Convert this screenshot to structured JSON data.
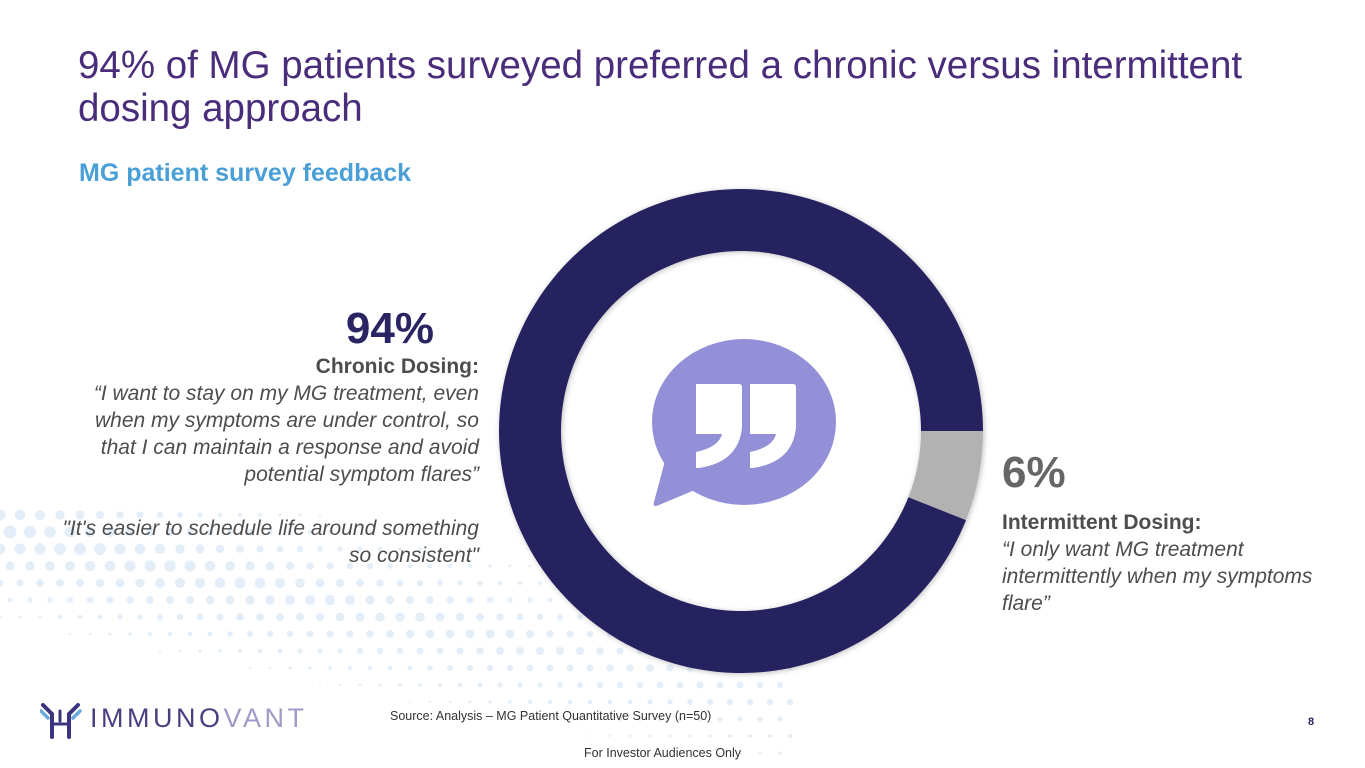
{
  "slide": {
    "title": "94% of MG patients surveyed preferred a chronic versus intermittent dosing approach",
    "subtitle": "MG patient survey feedback",
    "source": "Source: Analysis – MG Patient Quantitative Survey (n=50)",
    "footer": "For Investor Audiences Only",
    "page_number": "8",
    "logo": {
      "text_main": "IMMUNO",
      "text_accent": "VANT",
      "icon": "antibody-icon"
    },
    "center_icon": "quote-bubble-icon"
  },
  "chronic": {
    "percent_label": "94%",
    "heading": "Chronic Dosing:",
    "quote_1": "“I want to stay on my MG treatment, even when my symptoms are under control, so that I can maintain a response and avoid potential symptom flares”",
    "quote_2": "\"It's easier to schedule life around something so consistent\""
  },
  "intermittent": {
    "percent_label": "6%",
    "heading": "Intermittent Dosing:",
    "quote": "“I only want MG treatment intermittently when my symptoms flare”"
  },
  "colors": {
    "chronic": "#282260",
    "intermittent": "#b2b2b2",
    "title": "#4a2d7a",
    "subtitle": "#4a9fd6",
    "bubble": "#9490d8"
  },
  "chart_data": {
    "type": "pie",
    "variant": "donut",
    "title": "MG patient survey feedback",
    "categories": [
      "Chronic Dosing",
      "Intermittent Dosing"
    ],
    "values": [
      94,
      6
    ],
    "unit": "%",
    "data_labels": [
      "94%",
      "6%"
    ],
    "n": 50
  }
}
